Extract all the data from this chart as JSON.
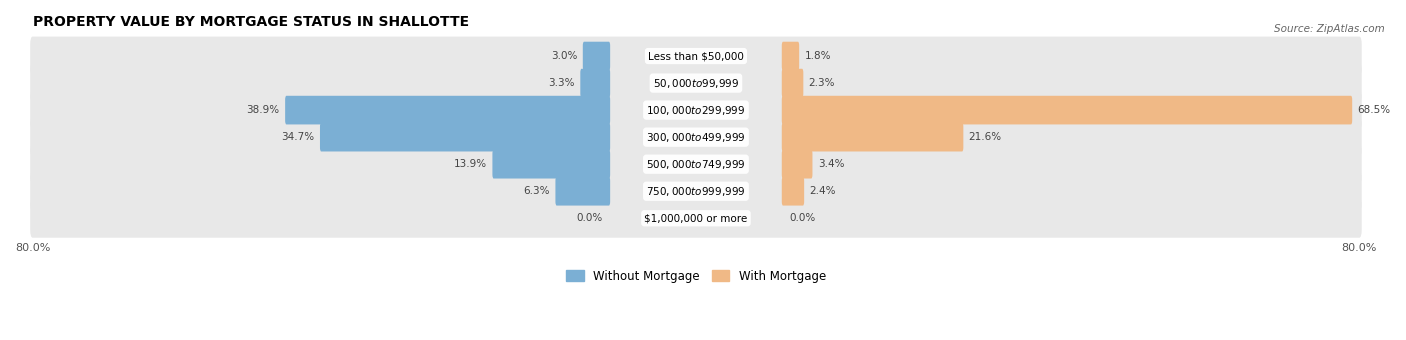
{
  "title": "PROPERTY VALUE BY MORTGAGE STATUS IN SHALLOTTE",
  "source": "Source: ZipAtlas.com",
  "categories": [
    "Less than $50,000",
    "$50,000 to $99,999",
    "$100,000 to $299,999",
    "$300,000 to $499,999",
    "$500,000 to $749,999",
    "$750,000 to $999,999",
    "$1,000,000 or more"
  ],
  "without_mortgage": [
    3.0,
    3.3,
    38.9,
    34.7,
    13.9,
    6.3,
    0.0
  ],
  "with_mortgage": [
    1.8,
    2.3,
    68.5,
    21.6,
    3.4,
    2.4,
    0.0
  ],
  "xlim": 80.0,
  "bar_color_without": "#7BAFD4",
  "bar_color_with": "#F0B986",
  "bg_row_color": "#E8E8E8",
  "bg_row_color2": "#F0F0F0",
  "label_color": "#444444",
  "axis_tick_fontsize": 8,
  "bar_label_fontsize": 7.5,
  "cat_label_fontsize": 7.5,
  "title_fontsize": 10,
  "source_fontsize": 7.5
}
